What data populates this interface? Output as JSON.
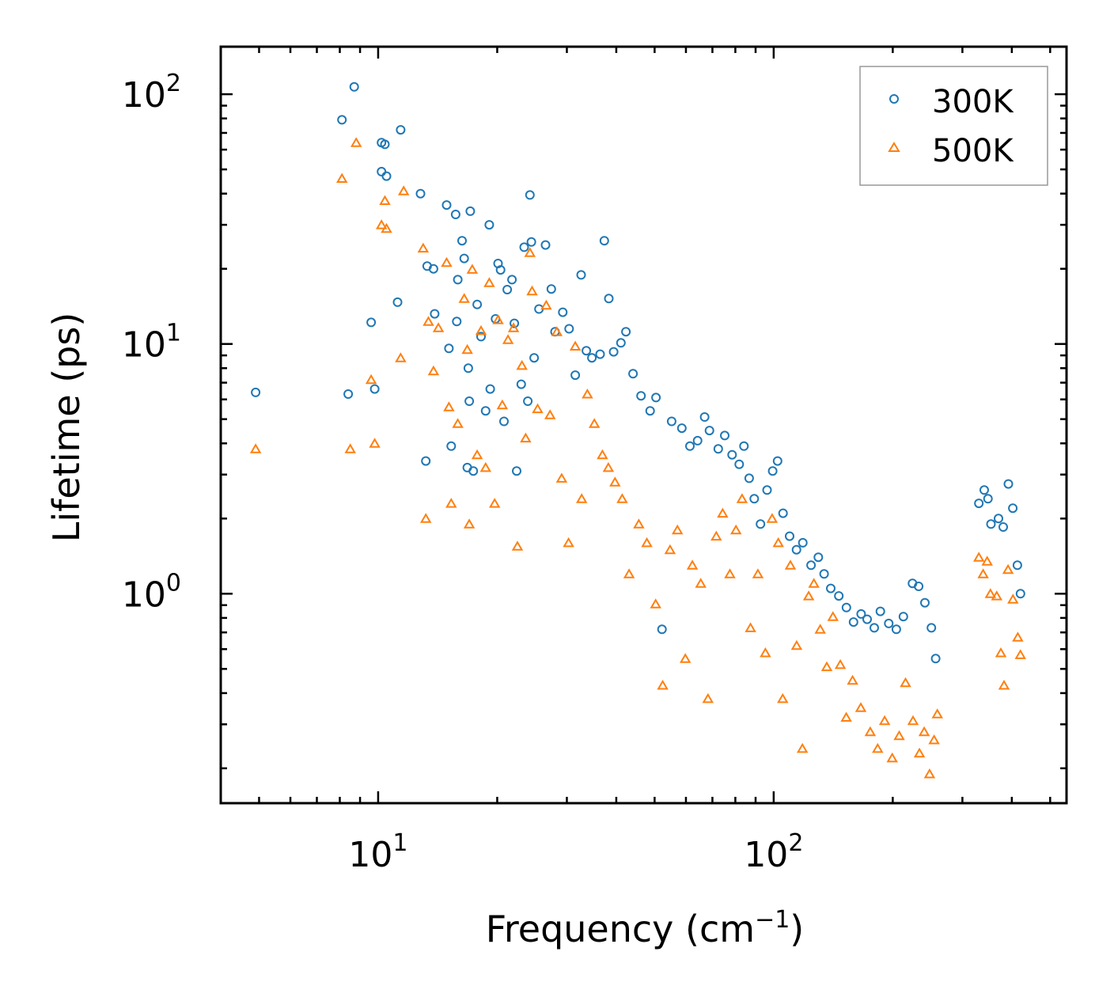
{
  "chart_data": {
    "type": "scatter",
    "title": "",
    "xlabel": "Frequency (cm",
    "xlabel_sup": "−1",
    "xlabel_end": ")",
    "ylabel": "Lifetime (ps)",
    "xscale": "log",
    "yscale": "log",
    "xlim": [
      4.0,
      550
    ],
    "ylim": [
      0.145,
      155
    ],
    "x_ticks": [
      {
        "base": "10",
        "exp": "1",
        "value": 10
      },
      {
        "base": "10",
        "exp": "2",
        "value": 100
      }
    ],
    "y_ticks": [
      {
        "base": "10",
        "exp": "0",
        "value": 1
      },
      {
        "base": "10",
        "exp": "1",
        "value": 10
      },
      {
        "base": "10",
        "exp": "2",
        "value": 100
      }
    ],
    "legend": {
      "position": "top-right"
    },
    "series": [
      {
        "name": "300K",
        "marker": "circle",
        "color": "#1f77b4",
        "points": [
          [
            4.9,
            6.4
          ],
          [
            8.1,
            79
          ],
          [
            8.4,
            6.3
          ],
          [
            8.7,
            107
          ],
          [
            9.6,
            12.2
          ],
          [
            9.8,
            6.6
          ],
          [
            10.2,
            64
          ],
          [
            10.4,
            63
          ],
          [
            10.2,
            49
          ],
          [
            10.5,
            47
          ],
          [
            11.2,
            14.7
          ],
          [
            11.4,
            72
          ],
          [
            12.8,
            40
          ],
          [
            13.3,
            20.5
          ],
          [
            13.2,
            3.4
          ],
          [
            13.8,
            20
          ],
          [
            13.9,
            13.2
          ],
          [
            14.9,
            36
          ],
          [
            15.1,
            9.6
          ],
          [
            15.3,
            3.9
          ],
          [
            15.7,
            33
          ],
          [
            15.8,
            12.3
          ],
          [
            15.9,
            18.1
          ],
          [
            16.3,
            25.9
          ],
          [
            16.5,
            22
          ],
          [
            16.9,
            8
          ],
          [
            16.8,
            3.2
          ],
          [
            17.0,
            5.9
          ],
          [
            17.1,
            34
          ],
          [
            17.4,
            3.1
          ],
          [
            17.8,
            14.4
          ],
          [
            18.2,
            10.7
          ],
          [
            18.7,
            5.4
          ],
          [
            19.1,
            30
          ],
          [
            19.2,
            6.6
          ],
          [
            19.8,
            12.6
          ],
          [
            20.1,
            21
          ],
          [
            20.4,
            19.8
          ],
          [
            20.8,
            4.9
          ],
          [
            21.2,
            16.5
          ],
          [
            21.8,
            18.1
          ],
          [
            22.1,
            12.1
          ],
          [
            22.4,
            3.1
          ],
          [
            23.0,
            6.9
          ],
          [
            23.4,
            24.4
          ],
          [
            23.9,
            5.9
          ],
          [
            24.2,
            39.5
          ],
          [
            24.4,
            25.6
          ],
          [
            24.8,
            8.8
          ],
          [
            25.5,
            13.8
          ],
          [
            26.5,
            24.9
          ],
          [
            27.4,
            16.6
          ],
          [
            28.0,
            11.2
          ],
          [
            29.3,
            13.4
          ],
          [
            30.4,
            11.5
          ],
          [
            31.5,
            7.5
          ],
          [
            32.6,
            18.9
          ],
          [
            33.6,
            9.4
          ],
          [
            34.7,
            8.8
          ],
          [
            36.4,
            9.1
          ],
          [
            37.3,
            25.9
          ],
          [
            38.3,
            15.2
          ],
          [
            39.4,
            9.3
          ],
          [
            41.1,
            10.1
          ],
          [
            42.3,
            11.2
          ],
          [
            44.1,
            7.6
          ],
          [
            46.2,
            6.2
          ],
          [
            48.7,
            5.4
          ],
          [
            50.4,
            6.1
          ],
          [
            52.2,
            0.72
          ],
          [
            55.2,
            4.9
          ],
          [
            58.6,
            4.6
          ],
          [
            61.4,
            3.9
          ],
          [
            64.2,
            4.1
          ],
          [
            66.9,
            5.1
          ],
          [
            68.8,
            4.5
          ],
          [
            72.4,
            3.8
          ],
          [
            75.2,
            4.3
          ],
          [
            78.5,
            3.6
          ],
          [
            81.8,
            3.3
          ],
          [
            84.1,
            3.9
          ],
          [
            86.7,
            2.9
          ],
          [
            89.3,
            2.4
          ],
          [
            92.6,
            1.9
          ],
          [
            96.2,
            2.6
          ],
          [
            99.4,
            3.1
          ],
          [
            102.3,
            3.4
          ],
          [
            105.6,
            2.1
          ],
          [
            109.7,
            1.7
          ],
          [
            114.2,
            1.5
          ],
          [
            118.5,
            1.6
          ],
          [
            124.3,
            1.3
          ],
          [
            129.7,
            1.4
          ],
          [
            134.1,
            1.2
          ],
          [
            139.4,
            1.05
          ],
          [
            146.1,
            0.98
          ],
          [
            152.7,
            0.88
          ],
          [
            159.2,
            0.77
          ],
          [
            166.4,
            0.83
          ],
          [
            172.3,
            0.79
          ],
          [
            179.6,
            0.73
          ],
          [
            186.1,
            0.85
          ],
          [
            195.4,
            0.76
          ],
          [
            204.2,
            0.72
          ],
          [
            212.8,
            0.81
          ],
          [
            224.3,
            1.1
          ],
          [
            232.5,
            1.07
          ],
          [
            241.2,
            0.92
          ],
          [
            250.4,
            0.73
          ],
          [
            256.7,
            0.55
          ],
          [
            330.2,
            2.3
          ],
          [
            340.7,
            2.6
          ],
          [
            348.2,
            2.4
          ],
          [
            354.3,
            1.9
          ],
          [
            370.2,
            2.0
          ],
          [
            380.4,
            1.85
          ],
          [
            392.1,
            2.75
          ],
          [
            402.3,
            2.2
          ],
          [
            413.2,
            1.3
          ],
          [
            420.6,
            1.0
          ]
        ]
      },
      {
        "name": "500K",
        "marker": "triangle",
        "color": "#ff7f0e",
        "points": [
          [
            4.9,
            3.8
          ],
          [
            8.1,
            46
          ],
          [
            8.5,
            3.8
          ],
          [
            8.8,
            64
          ],
          [
            9.6,
            7.2
          ],
          [
            9.8,
            4.0
          ],
          [
            10.2,
            30
          ],
          [
            10.4,
            37.5
          ],
          [
            10.5,
            29
          ],
          [
            11.4,
            8.8
          ],
          [
            11.6,
            41
          ],
          [
            13.0,
            24.2
          ],
          [
            13.2,
            2.0
          ],
          [
            13.4,
            12.3
          ],
          [
            13.8,
            7.8
          ],
          [
            14.2,
            11.6
          ],
          [
            14.9,
            21.2
          ],
          [
            15.1,
            5.6
          ],
          [
            15.3,
            2.3
          ],
          [
            15.9,
            4.8
          ],
          [
            16.5,
            15.2
          ],
          [
            16.8,
            9.5
          ],
          [
            17.0,
            1.9
          ],
          [
            17.3,
            19.9
          ],
          [
            17.8,
            3.6
          ],
          [
            18.2,
            11.3
          ],
          [
            18.7,
            3.2
          ],
          [
            19.1,
            17.6
          ],
          [
            19.7,
            2.3
          ],
          [
            20.1,
            12.5
          ],
          [
            20.6,
            5.7
          ],
          [
            21.3,
            10.4
          ],
          [
            22.0,
            11.6
          ],
          [
            22.5,
            1.55
          ],
          [
            23.1,
            8.2
          ],
          [
            23.6,
            4.2
          ],
          [
            24.2,
            23.2
          ],
          [
            24.5,
            16.3
          ],
          [
            25.3,
            5.5
          ],
          [
            26.6,
            14.3
          ],
          [
            27.2,
            5.2
          ],
          [
            28.3,
            11.2
          ],
          [
            29.1,
            2.9
          ],
          [
            30.3,
            1.6
          ],
          [
            31.5,
            9.8
          ],
          [
            32.7,
            2.4
          ],
          [
            33.8,
            6.3
          ],
          [
            35.2,
            4.8
          ],
          [
            36.9,
            3.6
          ],
          [
            38.2,
            3.2
          ],
          [
            39.7,
            2.8
          ],
          [
            41.4,
            2.4
          ],
          [
            43.1,
            1.2
          ],
          [
            45.6,
            1.9
          ],
          [
            47.8,
            1.6
          ],
          [
            50.3,
            0.91
          ],
          [
            52.4,
            0.43
          ],
          [
            54.7,
            1.5
          ],
          [
            57.1,
            1.8
          ],
          [
            59.8,
            0.55
          ],
          [
            62.3,
            1.3
          ],
          [
            65.4,
            1.1
          ],
          [
            68.2,
            0.38
          ],
          [
            71.6,
            1.7
          ],
          [
            74.3,
            2.1
          ],
          [
            77.5,
            1.2
          ],
          [
            80.3,
            1.8
          ],
          [
            83.2,
            2.4
          ],
          [
            87.4,
            0.73
          ],
          [
            91.2,
            1.2
          ],
          [
            95.3,
            0.58
          ],
          [
            99.1,
            2.0
          ],
          [
            102.7,
            1.6
          ],
          [
            105.4,
            0.38
          ],
          [
            110.2,
            1.3
          ],
          [
            114.3,
            0.62
          ],
          [
            118.2,
            0.24
          ],
          [
            122.6,
            0.98
          ],
          [
            126.4,
            1.1
          ],
          [
            131.1,
            0.72
          ],
          [
            136.2,
            0.51
          ],
          [
            141.2,
            0.81
          ],
          [
            147.4,
            0.52
          ],
          [
            152.6,
            0.32
          ],
          [
            158.3,
            0.45
          ],
          [
            166.1,
            0.35
          ],
          [
            175.4,
            0.28
          ],
          [
            183.2,
            0.24
          ],
          [
            190.8,
            0.31
          ],
          [
            199.4,
            0.22
          ],
          [
            207.6,
            0.27
          ],
          [
            215.4,
            0.44
          ],
          [
            225.1,
            0.31
          ],
          [
            233.6,
            0.23
          ],
          [
            240.2,
            0.28
          ],
          [
            247.8,
            0.19
          ],
          [
            254.4,
            0.26
          ],
          [
            259.2,
            0.33
          ],
          [
            330.2,
            1.4
          ],
          [
            338.5,
            1.2
          ],
          [
            346.6,
            1.35
          ],
          [
            353.2,
            1.0
          ],
          [
            366.4,
            0.98
          ],
          [
            375.3,
            0.58
          ],
          [
            382.2,
            0.43
          ],
          [
            391.3,
            1.25
          ],
          [
            402.6,
            0.95
          ],
          [
            414.2,
            0.67
          ],
          [
            420.4,
            0.57
          ]
        ]
      }
    ]
  }
}
